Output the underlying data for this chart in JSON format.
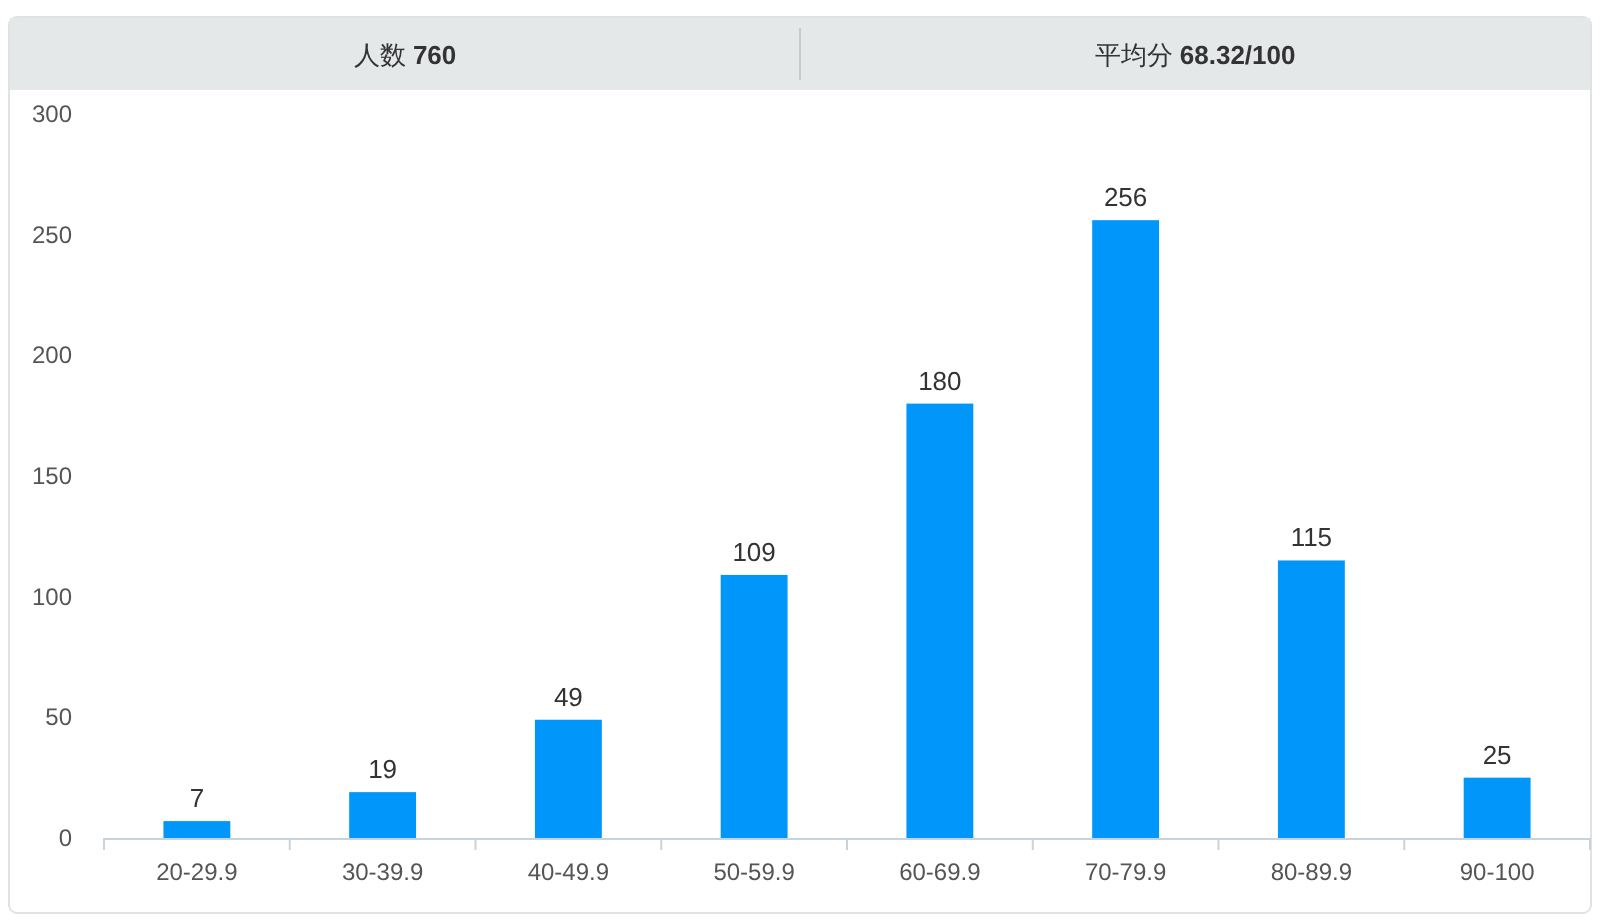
{
  "chart_data": {
    "type": "bar",
    "title": "人数 **760**",
    "subtitle": "平均分 **68.32/100**",
    "categories": [
      "20-29.9",
      "30-39.9",
      "40-49.9",
      "50-59.9",
      "60-69.9",
      "70-79.9",
      "80-89.9",
      "90-100"
    ],
    "values": [
      7,
      19,
      49,
      109,
      180,
      256,
      115,
      25
    ],
    "color": "#0096fa",
    "ylim": [
      0,
      300
    ],
    "yticks": [
      0,
      50,
      100,
      150,
      200,
      250,
      300
    ],
    "data_labels": true
  }
}
